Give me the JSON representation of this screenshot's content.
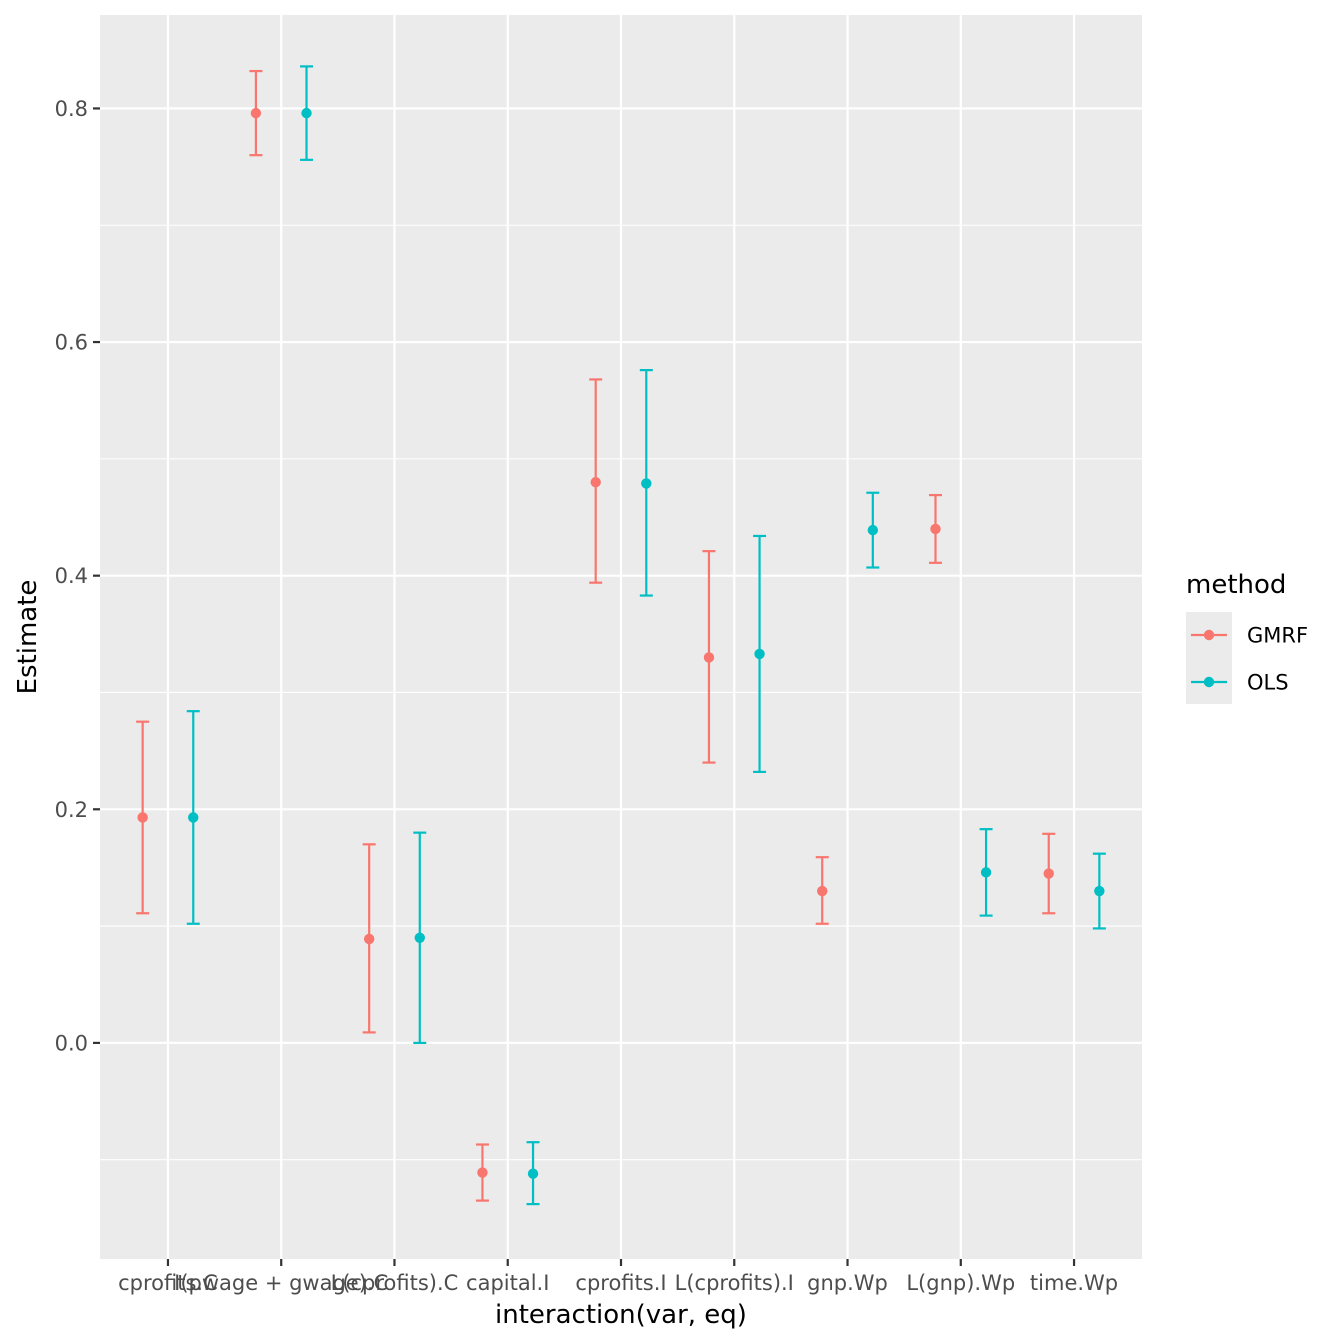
{
  "chart_data": {
    "type": "errorbar",
    "xlabel": "interaction(var, eq)",
    "ylabel": "Estimate",
    "ylim": [
      -0.185,
      0.88
    ],
    "y_ticks": [
      0.0,
      0.2,
      0.4,
      0.6,
      0.8
    ],
    "y_tick_labels": [
      "0.0",
      "0.2",
      "0.4",
      "0.6",
      "0.8"
    ],
    "categories": [
      "cprofits.C",
      "I(pwage + gwage).C",
      "L(cprofits).C",
      "capital.I",
      "cprofits.I",
      "L(cprofits).I",
      "gnp.Wp",
      "L(gnp).Wp",
      "time.Wp"
    ],
    "legend": {
      "title": "method",
      "position": "right"
    },
    "grid": true,
    "series": [
      {
        "name": "GMRF",
        "color": "#F8766D",
        "points": [
          {
            "category": "cprofits.C",
            "estimate": 0.193,
            "lower": 0.111,
            "upper": 0.275
          },
          {
            "category": "I(pwage + gwage).C",
            "estimate": 0.796,
            "lower": 0.76,
            "upper": 0.832
          },
          {
            "category": "L(cprofits).C",
            "estimate": 0.089,
            "lower": 0.009,
            "upper": 0.17
          },
          {
            "category": "capital.I",
            "estimate": -0.111,
            "lower": -0.135,
            "upper": -0.087
          },
          {
            "category": "cprofits.I",
            "estimate": 0.48,
            "lower": 0.394,
            "upper": 0.568
          },
          {
            "category": "L(cprofits).I",
            "estimate": 0.33,
            "lower": 0.24,
            "upper": 0.421
          },
          {
            "category": "gnp.Wp",
            "estimate": 0.13,
            "lower": 0.102,
            "upper": 0.159
          },
          {
            "category": "L(gnp).Wp",
            "estimate": 0.44,
            "lower": 0.411,
            "upper": 0.469
          },
          {
            "category": "time.Wp",
            "estimate": 0.145,
            "lower": 0.111,
            "upper": 0.179
          }
        ]
      },
      {
        "name": "OLS",
        "color": "#00BFC4",
        "points": [
          {
            "category": "cprofits.C",
            "estimate": 0.193,
            "lower": 0.102,
            "upper": 0.284
          },
          {
            "category": "I(pwage + gwage).C",
            "estimate": 0.796,
            "lower": 0.756,
            "upper": 0.836
          },
          {
            "category": "L(cprofits).C",
            "estimate": 0.09,
            "lower": 0.0,
            "upper": 0.18
          },
          {
            "category": "capital.I",
            "estimate": -0.112,
            "lower": -0.138,
            "upper": -0.085
          },
          {
            "category": "cprofits.I",
            "estimate": 0.479,
            "lower": 0.383,
            "upper": 0.576
          },
          {
            "category": "L(cprofits).I",
            "estimate": 0.333,
            "lower": 0.232,
            "upper": 0.434
          },
          {
            "category": "gnp.Wp",
            "estimate": 0.439,
            "lower": 0.407,
            "upper": 0.471
          },
          {
            "category": "L(gnp).Wp",
            "estimate": 0.146,
            "lower": 0.109,
            "upper": 0.183
          },
          {
            "category": "time.Wp",
            "estimate": 0.13,
            "lower": 0.098,
            "upper": 0.162
          }
        ]
      }
    ]
  }
}
